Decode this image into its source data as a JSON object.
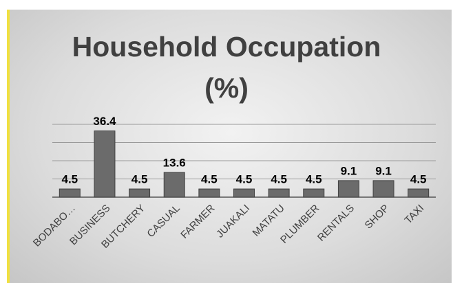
{
  "chart_data": {
    "type": "bar",
    "title": "Household Occupation (%)",
    "categories": [
      "BODABO…",
      "BUSINESS",
      "BUTCHERY",
      "CASUAL",
      "FARMER",
      "JUAKALI",
      "MATATU",
      "PLUMBER",
      "RENTALS",
      "SHOP",
      "TAXI"
    ],
    "values": [
      4.5,
      36.4,
      4.5,
      13.6,
      4.5,
      4.5,
      4.5,
      4.5,
      9.1,
      9.1,
      4.5
    ],
    "color": "#6b6b6b",
    "ylim": [
      0,
      40
    ],
    "yticks": [
      0,
      10,
      20,
      30,
      40
    ],
    "grid": true
  }
}
